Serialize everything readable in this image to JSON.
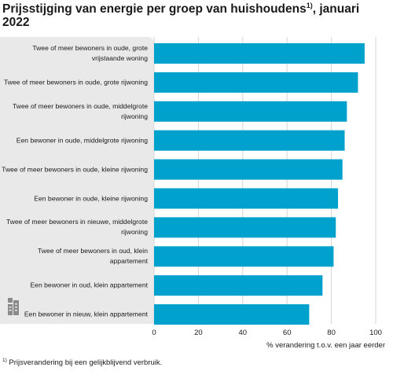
{
  "title": {
    "text": "Prijsstijging van energie per groep van huishoudens",
    "footnote_ref": "1)",
    "suffix": ", januari 2022"
  },
  "chart_data": {
    "type": "bar",
    "orientation": "horizontal",
    "categories": [
      "Twee of meer bewoners in oude, grote vrijstaande woning",
      "Twee of meer bewoners in oude, grote rijwoning",
      "Twee of meer bewoners in oude, middelgrote rijwoning",
      "Een bewoner in oude, middelgrote rijwoning",
      "Twee of meer bewoners in oude, kleine rijwoning",
      "Een bewoner in oude, kleine rijwoning",
      "Twee of meer bewoners in nieuwe, middelgrote rijwoning",
      "Twee of meer bewoners in oud, klein appartement",
      "Een bewoner in oud, klein appartement",
      "Een bewoner in nieuw, klein appartement"
    ],
    "values": [
      95,
      92,
      87,
      86,
      85,
      83,
      82,
      81,
      76,
      70
    ],
    "xlabel": "% verandering t.o.v. een jaar eerder",
    "xlim": [
      0,
      100
    ],
    "xticks": [
      "0",
      "20",
      "40",
      "60",
      "80",
      "100"
    ],
    "grid": true,
    "bar_color": "#00a1cd",
    "grid_color": "#d6d6d6"
  },
  "footnote": {
    "ref": "1)",
    "text": "Prijsverandering bij een gelijkblijvend verbruik."
  },
  "icons": {
    "brand": "cbs-logo-icon"
  }
}
